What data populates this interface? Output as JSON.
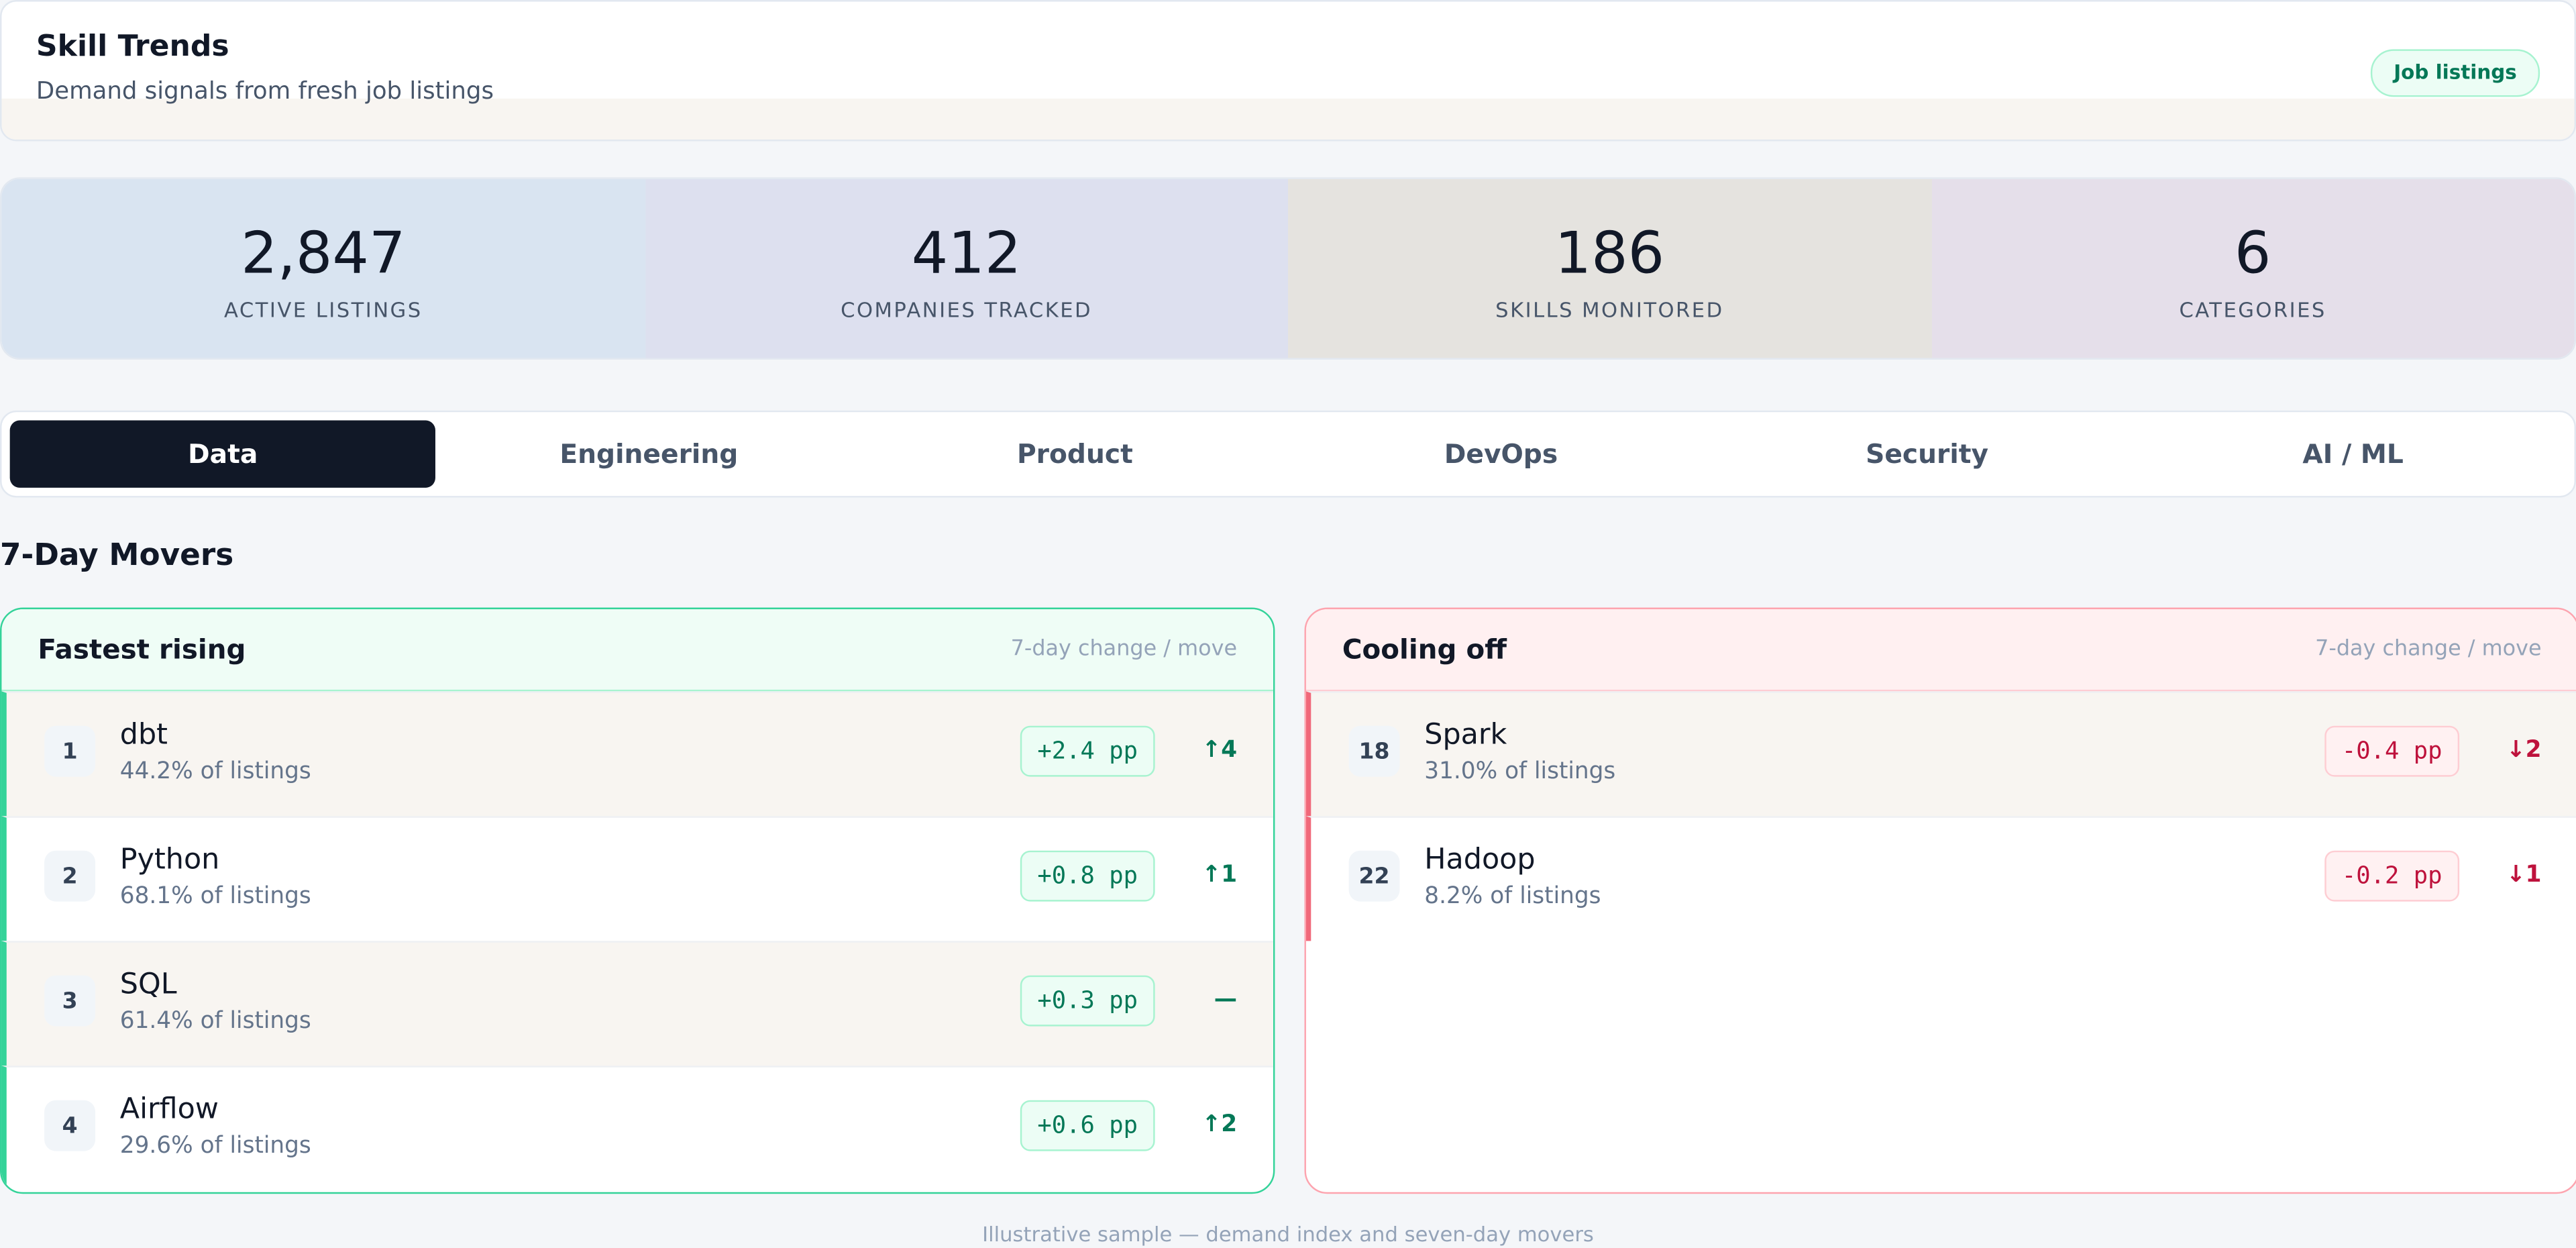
{
  "header": {
    "title": "Skill Trends",
    "subtitle": "Demand signals from fresh job listings",
    "badge": "Job listings"
  },
  "stats": [
    {
      "value": "2,847",
      "label": "ACTIVE LISTINGS"
    },
    {
      "value": "412",
      "label": "COMPANIES TRACKED"
    },
    {
      "value": "186",
      "label": "SKILLS MONITORED"
    },
    {
      "value": "6",
      "label": "CATEGORIES"
    }
  ],
  "tabs": [
    "Data",
    "Engineering",
    "Product",
    "DevOps",
    "Security",
    "AI / ML"
  ],
  "section_title": "7-Day Movers",
  "panels": [
    {
      "title": "Fastest rising",
      "note": "7-day change / move",
      "rows": [
        {
          "rank": "1",
          "name": "dbt",
          "share": "44.2% of listings",
          "change": "+2.4 pp",
          "move": "↑4"
        },
        {
          "rank": "2",
          "name": "Python",
          "share": "68.1% of listings",
          "change": "+0.8 pp",
          "move": "↑1"
        },
        {
          "rank": "3",
          "name": "SQL",
          "share": "61.4% of listings",
          "change": "+0.3 pp",
          "move": "—"
        },
        {
          "rank": "4",
          "name": "Airflow",
          "share": "29.6% of listings",
          "change": "+0.6 pp",
          "move": "↑2"
        }
      ]
    },
    {
      "title": "Cooling off",
      "note": "7-day change / move",
      "rows": [
        {
          "rank": "18",
          "name": "Spark",
          "share": "31.0% of listings",
          "change": "-0.4 pp",
          "move": "↓2"
        },
        {
          "rank": "22",
          "name": "Hadoop",
          "share": "8.2% of listings",
          "change": "-0.2 pp",
          "move": "↓1"
        }
      ]
    }
  ],
  "footer": "Illustrative sample — demand index and seven-day movers"
}
